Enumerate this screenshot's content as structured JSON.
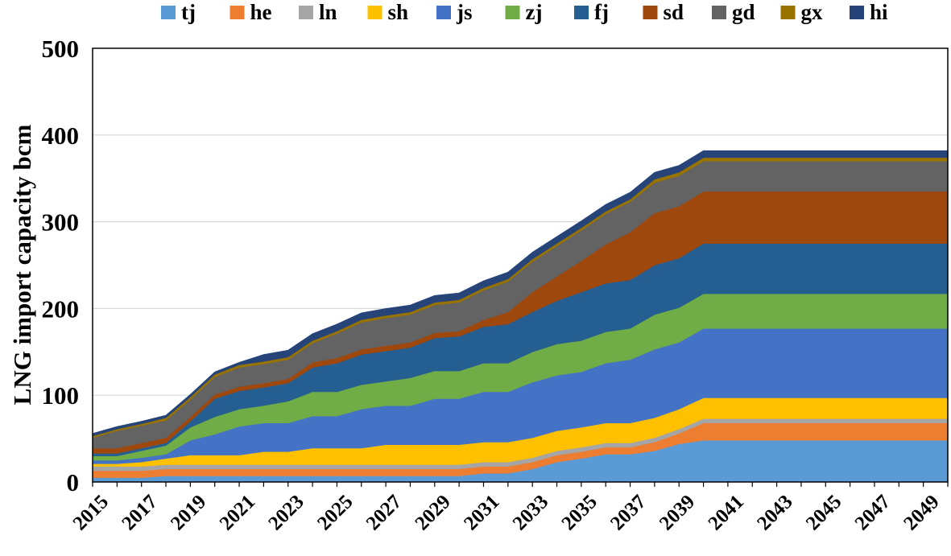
{
  "chart_data": {
    "type": "area",
    "stacked": true,
    "title": "",
    "xlabel": "",
    "ylabel": "LNG import capacity bcm",
    "ylim": [
      0,
      500
    ],
    "yticks": [
      0,
      100,
      200,
      300,
      400,
      500
    ],
    "xticks": [
      2015,
      2017,
      2019,
      2021,
      2023,
      2025,
      2027,
      2029,
      2031,
      2033,
      2035,
      2037,
      2039,
      2041,
      2043,
      2045,
      2047,
      2049
    ],
    "x": [
      2015,
      2016,
      2017,
      2018,
      2019,
      2020,
      2021,
      2022,
      2023,
      2024,
      2025,
      2026,
      2027,
      2028,
      2029,
      2030,
      2031,
      2032,
      2033,
      2034,
      2035,
      2036,
      2037,
      2038,
      2039,
      2040,
      2041,
      2042,
      2043,
      2044,
      2045,
      2046,
      2047,
      2048,
      2049,
      2050
    ],
    "legend_position": "top",
    "series": [
      {
        "name": "tj",
        "color": "#5B9BD5",
        "values": [
          5,
          5,
          5,
          7,
          7,
          7,
          7,
          7,
          7,
          7,
          7,
          7,
          7,
          7,
          7,
          7,
          10,
          10,
          15,
          23,
          27,
          32,
          32,
          36,
          44,
          48,
          48,
          48,
          48,
          48,
          48,
          48,
          48,
          48,
          48,
          48
        ]
      },
      {
        "name": "he",
        "color": "#ED7D31",
        "values": [
          8,
          8,
          8,
          8,
          8,
          8,
          8,
          8,
          8,
          8,
          8,
          8,
          8,
          8,
          8,
          8,
          8,
          8,
          8,
          8,
          8,
          8,
          8,
          10,
          12,
          20,
          20,
          20,
          20,
          20,
          20,
          20,
          20,
          20,
          20,
          20
        ]
      },
      {
        "name": "ln",
        "color": "#A5A5A5",
        "values": [
          5,
          5,
          5,
          5,
          5,
          5,
          5,
          5,
          5,
          5,
          5,
          5,
          5,
          5,
          5,
          5,
          5,
          5,
          5,
          5,
          5,
          5,
          5,
          5,
          5,
          5,
          5,
          5,
          5,
          5,
          5,
          5,
          5,
          5,
          5,
          5
        ]
      },
      {
        "name": "sh",
        "color": "#FFC000",
        "values": [
          3,
          3,
          5,
          7,
          11,
          11,
          11,
          15,
          15,
          19,
          19,
          19,
          23,
          23,
          23,
          23,
          23,
          23,
          23,
          23,
          23,
          23,
          23,
          23,
          23,
          24,
          24,
          24,
          24,
          24,
          24,
          24,
          24,
          24,
          24,
          24
        ]
      },
      {
        "name": "js",
        "color": "#4472C4",
        "values": [
          4,
          4,
          5,
          5,
          17,
          24,
          33,
          33,
          33,
          37,
          37,
          45,
          45,
          45,
          53,
          53,
          58,
          58,
          64,
          64,
          64,
          69,
          73,
          79,
          77,
          80,
          80,
          80,
          80,
          80,
          80,
          80,
          80,
          80,
          80,
          80
        ]
      },
      {
        "name": "zj",
        "color": "#70AD47",
        "values": [
          5,
          5,
          8,
          10,
          15,
          20,
          20,
          20,
          25,
          28,
          28,
          28,
          28,
          32,
          32,
          32,
          33,
          33,
          35,
          36,
          36,
          36,
          36,
          40,
          40,
          40,
          40,
          40,
          40,
          40,
          40,
          40,
          40,
          40,
          40,
          40
        ]
      },
      {
        "name": "fj",
        "color": "#255E91",
        "values": [
          3,
          3,
          3,
          3,
          7,
          21,
          21,
          21,
          21,
          28,
          33,
          35,
          35,
          35,
          38,
          40,
          42,
          45,
          46,
          50,
          56,
          56,
          56,
          57,
          57,
          58,
          58,
          58,
          58,
          58,
          58,
          58,
          58,
          58,
          58,
          58
        ]
      },
      {
        "name": "sd",
        "color": "#9E480E",
        "values": [
          6,
          6,
          6,
          6,
          5,
          5,
          5,
          5,
          5,
          6,
          6,
          6,
          6,
          6,
          6,
          6,
          8,
          14,
          23,
          28,
          36,
          45,
          55,
          60,
          60,
          60,
          60,
          60,
          60,
          60,
          60,
          60,
          60,
          60,
          60,
          60
        ]
      },
      {
        "name": "gd",
        "color": "#636363",
        "values": [
          12,
          20,
          20,
          20,
          20,
          20,
          22,
          22,
          22,
          22,
          28,
          31,
          32,
          32,
          32,
          33,
          34,
          35,
          35,
          35,
          35,
          35,
          35,
          35,
          35,
          35,
          35,
          35,
          35,
          35,
          35,
          35,
          35,
          35,
          35,
          35
        ]
      },
      {
        "name": "gx",
        "color": "#997300",
        "values": [
          2,
          2,
          2,
          3,
          3,
          3,
          3,
          3,
          3,
          3,
          3,
          3,
          3,
          3,
          3,
          3,
          3,
          3,
          3,
          3,
          3,
          3,
          3,
          4,
          4,
          4,
          4,
          4,
          4,
          4,
          4,
          4,
          4,
          4,
          4,
          4
        ]
      },
      {
        "name": "hi",
        "color": "#264478",
        "values": [
          3,
          3,
          3,
          3,
          3,
          3,
          3,
          8,
          8,
          8,
          8,
          8,
          8,
          8,
          8,
          8,
          8,
          8,
          8,
          8,
          8,
          8,
          8,
          8,
          8,
          8,
          8,
          8,
          8,
          8,
          8,
          8,
          8,
          8,
          8,
          8
        ]
      }
    ]
  }
}
